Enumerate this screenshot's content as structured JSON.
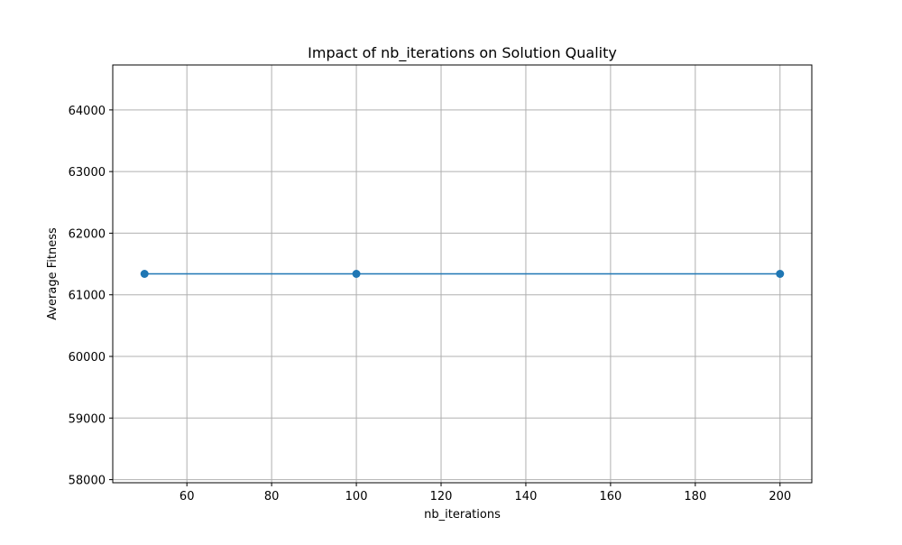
{
  "chart_data": {
    "type": "line",
    "title": "Impact of nb_iterations on Solution Quality",
    "xlabel": "nb_iterations",
    "ylabel": "Average Fitness",
    "x": [
      50,
      100,
      200
    ],
    "series": [
      {
        "values": [
          61340,
          61340,
          61340
        ],
        "color": "#1f77b4",
        "marker": "circle"
      }
    ],
    "xlim": [
      42.5,
      207.5
    ],
    "ylim": [
      57950,
      64730
    ],
    "xticks": [
      60,
      80,
      100,
      120,
      140,
      160,
      180,
      200
    ],
    "yticks": [
      58000,
      59000,
      60000,
      61000,
      62000,
      63000,
      64000
    ],
    "grid": true,
    "legend": "none",
    "grid_color": "#b0b0b0"
  }
}
